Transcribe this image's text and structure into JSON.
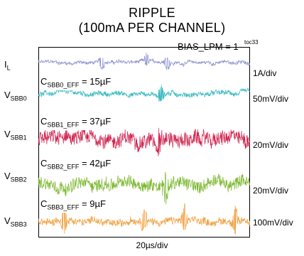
{
  "title_line1": "RIPPLE",
  "title_line2": "(100mA PER CHANNEL)",
  "figure_id": "toc33",
  "note": "BIAS_LPM = 1",
  "x_scale": "20µs/div",
  "chart_data": {
    "type": "line",
    "title": "RIPPLE (100mA PER CHANNEL)",
    "xlabel": "20µs/div",
    "x_divisions": 10,
    "grid": false,
    "series": [
      {
        "label_main": "I",
        "label_sub": "L",
        "scale": "1A/div",
        "color": "#8a8fce",
        "cap_main": "",
        "cap_sub": "",
        "cap_value": "",
        "noise_amplitude": 0.18,
        "spikes": [
          0.3,
          0.51,
          0.61
        ],
        "spike_amplitude": 0.45
      },
      {
        "label_main": "V",
        "label_sub": "SBB0",
        "scale": "50mV/div",
        "color": "#33b8c0",
        "cap_main": "C",
        "cap_sub": "SBB0_EFF",
        "cap_value": " = 15µF",
        "noise_amplitude": 0.22,
        "spikes": [
          0.58
        ],
        "spike_amplitude": 0.6
      },
      {
        "label_main": "V",
        "label_sub": "SBB1",
        "scale": "20mV/div",
        "color": "#d0224e",
        "cap_main": "C",
        "cap_sub": "SBB1_EFF",
        "cap_value": " = 37µF",
        "noise_amplitude": 0.42,
        "spikes": [
          0.57
        ],
        "spike_amplitude": 0.5
      },
      {
        "label_main": "V",
        "label_sub": "SBB2",
        "scale": "20mV/div",
        "color": "#7cb82e",
        "cap_main": "C",
        "cap_sub": "SBB2_EFF",
        "cap_value": " = 42µF",
        "noise_amplitude": 0.4,
        "spikes": [
          0.6
        ],
        "spike_amplitude": 0.5
      },
      {
        "label_main": "V",
        "label_sub": "SBB3",
        "scale": "100mV/div",
        "color": "#f0a040",
        "cap_main": "C",
        "cap_sub": "SBB3_EFF",
        "cap_value": " = 9µF",
        "noise_amplitude": 0.3,
        "spikes": [
          0.12,
          0.5,
          0.69,
          0.93
        ],
        "spike_amplitude": 0.7
      }
    ]
  }
}
